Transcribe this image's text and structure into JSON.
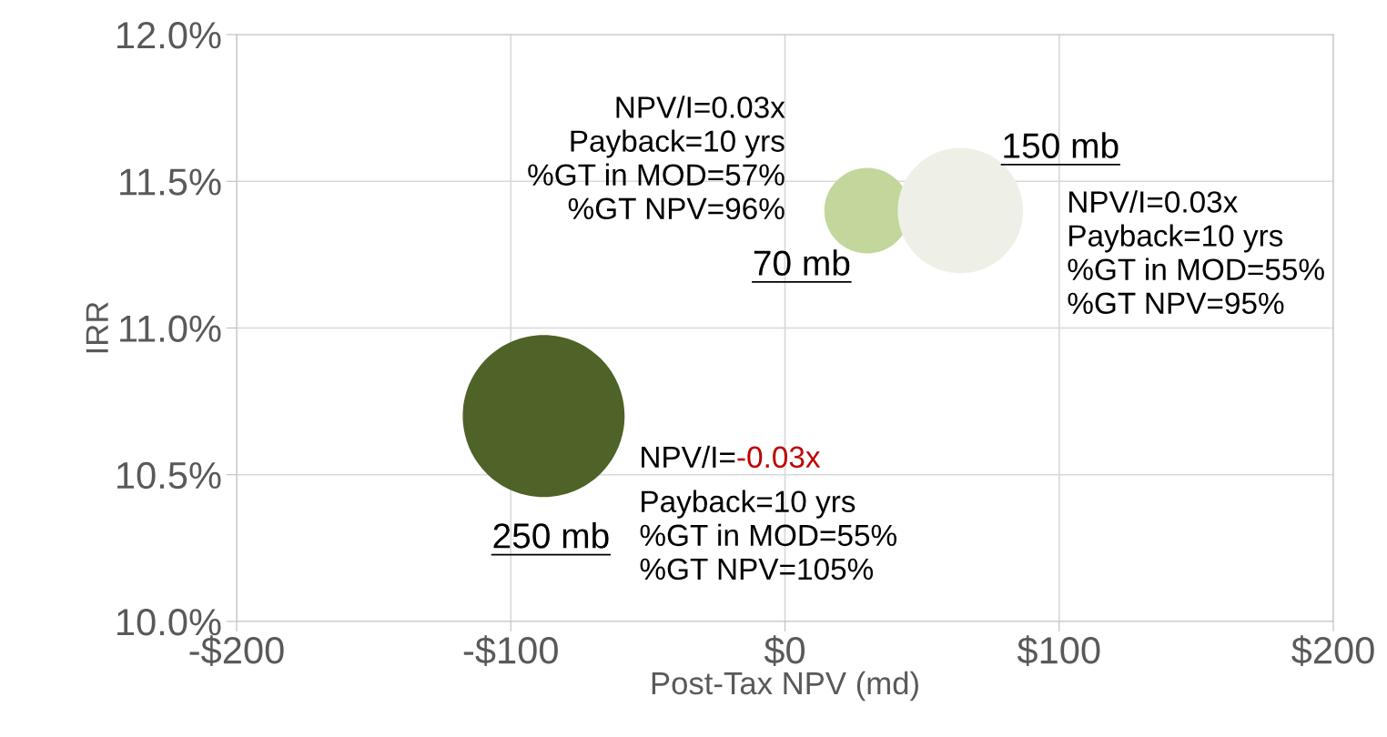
{
  "chart_data": {
    "type": "bubble",
    "xlabel": "Post-Tax NPV (md)",
    "ylabel": "IRR",
    "x": [
      -88,
      30,
      64
    ],
    "values": [
      10.7,
      11.4,
      11.4
    ],
    "sizes": [
      1,
      0.28,
      0.6
    ],
    "colors": [
      "#4f6228",
      "#c3d69b",
      "#eef0e8"
    ],
    "xlim": [
      -200,
      200
    ],
    "xticks": [
      {
        "value": -200,
        "label": "-$200"
      },
      {
        "value": -100,
        "label": "-$100"
      },
      {
        "value": 0,
        "label": "$0"
      },
      {
        "value": 100,
        "label": "$100"
      },
      {
        "value": 200,
        "label": "$200"
      }
    ],
    "ylim": [
      10.0,
      12.0
    ],
    "yticks": [
      {
        "value": 10.0,
        "label": "10.0%"
      },
      {
        "value": 10.5,
        "label": "10.5%"
      },
      {
        "value": 11.0,
        "label": "11.0%"
      },
      {
        "value": 11.5,
        "label": "11.5%"
      },
      {
        "value": 12.0,
        "label": "12.0%"
      }
    ],
    "grid": true,
    "annotations": [
      "250 mb",
      "70 mb",
      "150 mb",
      "NPV/I=0.03x\nPayback=10 yrs\n%GT in MOD=57%\n%GT NPV=96%",
      "NPV/I=0.03x\nPayback=10 yrs\n%GT in MOD=55%\n%GT NPV=95%",
      "NPV/I=",
      "-0.03x",
      "Payback=10 yrs\n%GT in MOD=55%\n%GT NPV=105%"
    ]
  }
}
